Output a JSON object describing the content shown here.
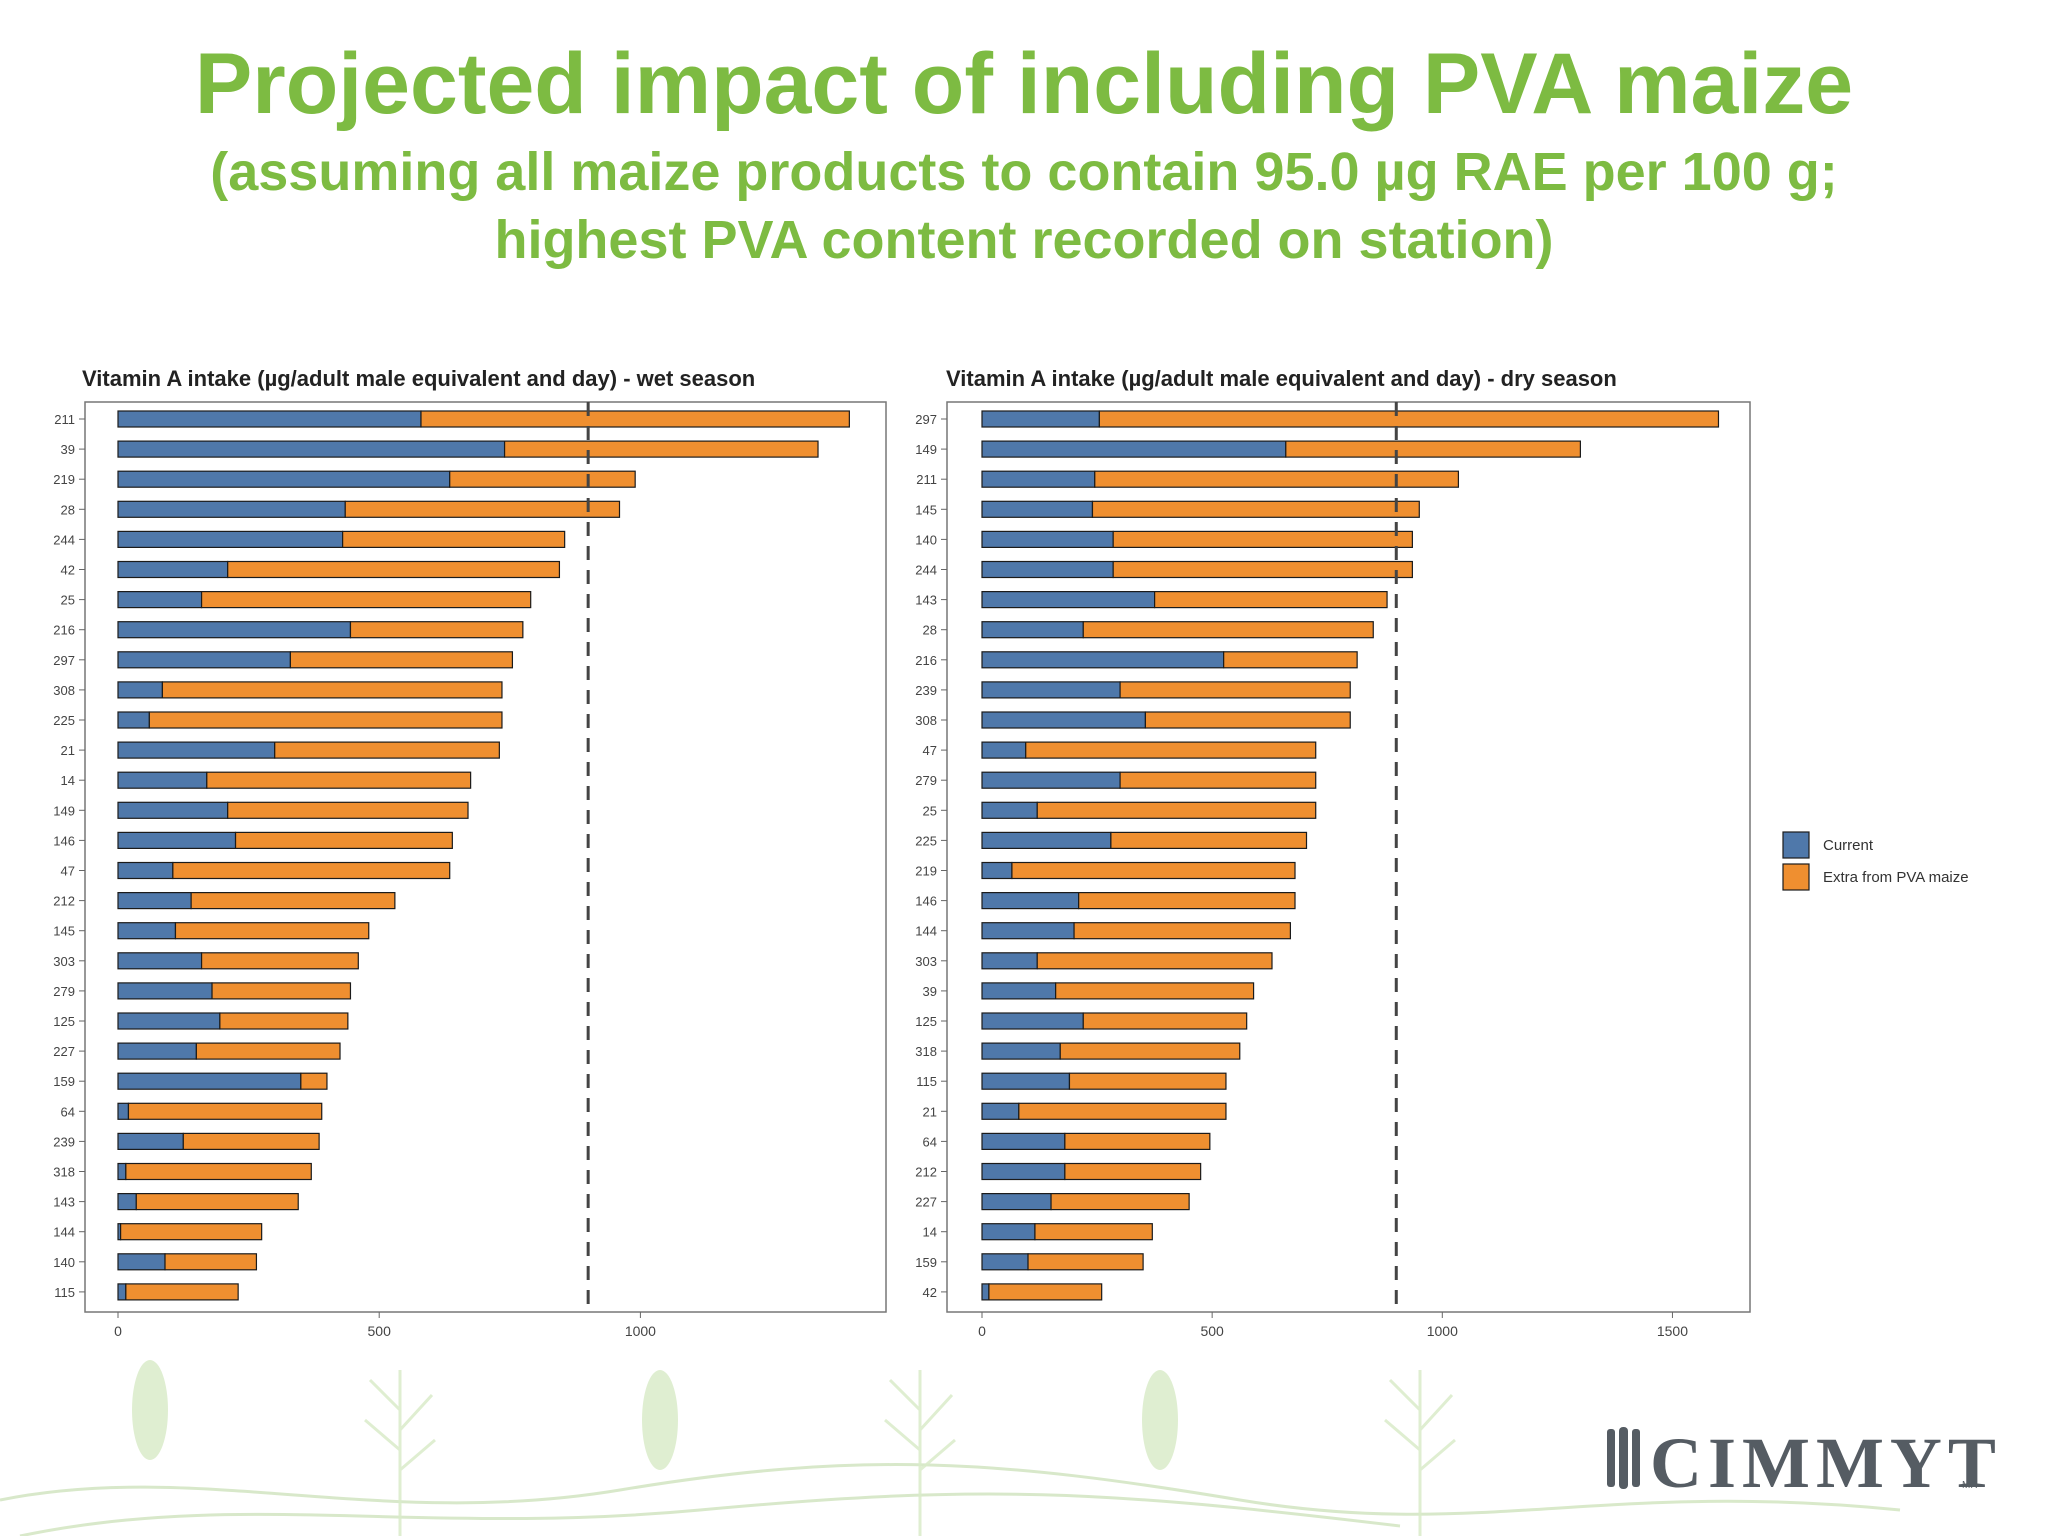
{
  "slide": {
    "title": "Projected impact of including PVA maize",
    "subtitle_line1": "(assuming all maize products to contain 95.0 µg RAE per 100 g;",
    "subtitle_line2": "highest PVA content recorded on station)",
    "logo_text": "CIMMYT",
    "logo_mark": "MR"
  },
  "colors": {
    "current": "#4f78aa",
    "extra": "#ef8f30",
    "title": "#7dbb42"
  },
  "legend": [
    {
      "key": "current",
      "label": "Current"
    },
    {
      "key": "extra",
      "label": "Extra from PVA maize"
    }
  ],
  "chart_data": [
    {
      "type": "bar",
      "orientation": "horizontal",
      "stacked": true,
      "title": "Vitamin A intake (µg/adult male equivalent and day) - wet season",
      "reference_line": 900,
      "xlim": [
        0,
        1480
      ],
      "xticks": [
        0,
        500,
        1000
      ],
      "categories": [
        "211",
        "39",
        "219",
        "28",
        "244",
        "42",
        "25",
        "216",
        "297",
        "308",
        "225",
        "21",
        "14",
        "149",
        "146",
        "47",
        "212",
        "145",
        "303",
        "279",
        "125",
        "227",
        "159",
        "64",
        "239",
        "318",
        "143",
        "144",
        "140",
        "115"
      ],
      "series": [
        {
          "name": "Current",
          "values": [
            580,
            740,
            635,
            435,
            430,
            210,
            160,
            445,
            330,
            85,
            60,
            300,
            170,
            210,
            225,
            105,
            140,
            110,
            160,
            180,
            195,
            150,
            350,
            20,
            125,
            15,
            35,
            5,
            90,
            15
          ]
        },
        {
          "name": "Extra from PVA maize",
          "values": [
            820,
            600,
            355,
            525,
            425,
            635,
            630,
            330,
            425,
            650,
            675,
            430,
            505,
            460,
            415,
            530,
            390,
            370,
            300,
            265,
            245,
            275,
            50,
            370,
            260,
            355,
            310,
            270,
            175,
            215
          ]
        }
      ]
    },
    {
      "type": "bar",
      "orientation": "horizontal",
      "stacked": true,
      "title": "Vitamin A intake (µg/adult male equivalent and day) - dry season",
      "reference_line": 900,
      "xlim": [
        0,
        1670
      ],
      "xticks": [
        0,
        500,
        1000,
        1500
      ],
      "categories": [
        "297",
        "149",
        "211",
        "145",
        "140",
        "244",
        "143",
        "28",
        "216",
        "239",
        "308",
        "47",
        "279",
        "25",
        "225",
        "219",
        "146",
        "144",
        "303",
        "39",
        "125",
        "318",
        "115",
        "21",
        "64",
        "212",
        "227",
        "14",
        "159",
        "42"
      ],
      "series": [
        {
          "name": "Current",
          "values": [
            255,
            660,
            245,
            240,
            285,
            285,
            375,
            220,
            525,
            300,
            355,
            95,
            300,
            120,
            280,
            65,
            210,
            200,
            120,
            160,
            220,
            170,
            190,
            80,
            180,
            180,
            150,
            115,
            100,
            15
          ]
        },
        {
          "name": "Extra from PVA maize",
          "values": [
            1345,
            640,
            790,
            710,
            650,
            650,
            505,
            630,
            290,
            500,
            445,
            630,
            425,
            605,
            425,
            615,
            470,
            470,
            510,
            430,
            355,
            390,
            340,
            450,
            315,
            295,
            300,
            255,
            250,
            245
          ]
        }
      ]
    }
  ]
}
